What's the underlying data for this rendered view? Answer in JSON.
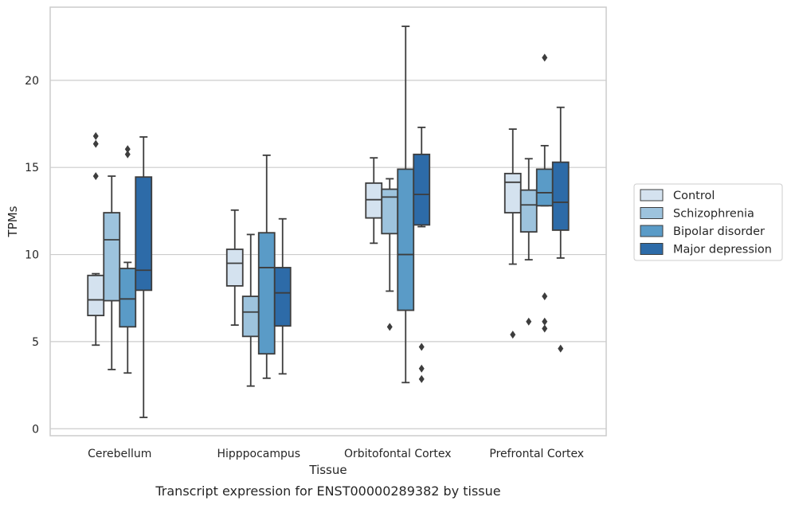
{
  "chart_data": {
    "type": "box",
    "caption": "Transcript expression for ENST00000289382 by tissue",
    "xlabel": "Tissue",
    "ylabel": "TPMs",
    "ylim": [
      -0.4,
      24.2
    ],
    "yticks": [
      0,
      5,
      10,
      15,
      20
    ],
    "grid": "horizontal",
    "legend_position": "right",
    "categories": [
      "Cerebellum",
      "Hipppocampus",
      "Orbitofontal Cortex",
      "Prefrontal Cortex"
    ],
    "series": [
      {
        "name": "Control",
        "color": "#d4e2ef",
        "boxes": [
          {
            "q1": 6.5,
            "median": 7.4,
            "q3": 8.8,
            "whisker_low": 4.8,
            "whisker_high": 8.9,
            "outliers": [
              14.5,
              16.35,
              16.8
            ]
          },
          {
            "q1": 8.2,
            "median": 9.5,
            "q3": 10.3,
            "whisker_low": 5.95,
            "whisker_high": 12.55,
            "outliers": []
          },
          {
            "q1": 12.1,
            "median": 13.15,
            "q3": 14.1,
            "whisker_low": 10.65,
            "whisker_high": 15.55,
            "outliers": []
          },
          {
            "q1": 12.4,
            "median": 14.15,
            "q3": 14.65,
            "whisker_low": 9.45,
            "whisker_high": 17.2,
            "outliers": [
              5.4
            ]
          }
        ]
      },
      {
        "name": "Schizophrenia",
        "color": "#9dc3dd",
        "boxes": [
          {
            "q1": 7.35,
            "median": 10.85,
            "q3": 12.4,
            "whisker_low": 3.4,
            "whisker_high": 14.5,
            "outliers": []
          },
          {
            "q1": 5.3,
            "median": 6.7,
            "q3": 7.6,
            "whisker_low": 2.45,
            "whisker_high": 11.15,
            "outliers": []
          },
          {
            "q1": 11.2,
            "median": 13.3,
            "q3": 13.75,
            "whisker_low": 7.9,
            "whisker_high": 14.35,
            "outliers": [
              5.85
            ]
          },
          {
            "q1": 11.3,
            "median": 12.85,
            "q3": 13.7,
            "whisker_low": 9.7,
            "whisker_high": 15.5,
            "outliers": [
              6.15
            ]
          }
        ]
      },
      {
        "name": "Bipolar disorder",
        "color": "#5a9bc7",
        "boxes": [
          {
            "q1": 5.85,
            "median": 7.45,
            "q3": 9.2,
            "whisker_low": 3.2,
            "whisker_high": 9.55,
            "outliers": [
              15.75,
              16.05
            ]
          },
          {
            "q1": 4.3,
            "median": 9.25,
            "q3": 11.25,
            "whisker_low": 2.9,
            "whisker_high": 15.7,
            "outliers": []
          },
          {
            "q1": 6.8,
            "median": 10.0,
            "q3": 14.9,
            "whisker_low": 2.65,
            "whisker_high": 23.1,
            "outliers": []
          },
          {
            "q1": 12.8,
            "median": 13.55,
            "q3": 14.9,
            "whisker_low": 12.8,
            "whisker_high": 16.25,
            "outliers": [
              5.75,
              6.15,
              7.6,
              21.3
            ]
          }
        ]
      },
      {
        "name": "Major depression",
        "color": "#2d6ba8",
        "boxes": [
          {
            "q1": 7.95,
            "median": 9.1,
            "q3": 14.45,
            "whisker_low": 0.65,
            "whisker_high": 16.75,
            "outliers": []
          },
          {
            "q1": 5.9,
            "median": 7.8,
            "q3": 9.25,
            "whisker_low": 3.15,
            "whisker_high": 12.05,
            "outliers": []
          },
          {
            "q1": 11.7,
            "median": 13.45,
            "q3": 15.75,
            "whisker_low": 11.6,
            "whisker_high": 17.3,
            "outliers": [
              2.85,
              3.45,
              4.7
            ]
          },
          {
            "q1": 11.4,
            "median": 13.0,
            "q3": 15.3,
            "whisker_low": 9.8,
            "whisker_high": 18.45,
            "outliers": [
              4.6
            ]
          }
        ]
      }
    ]
  }
}
